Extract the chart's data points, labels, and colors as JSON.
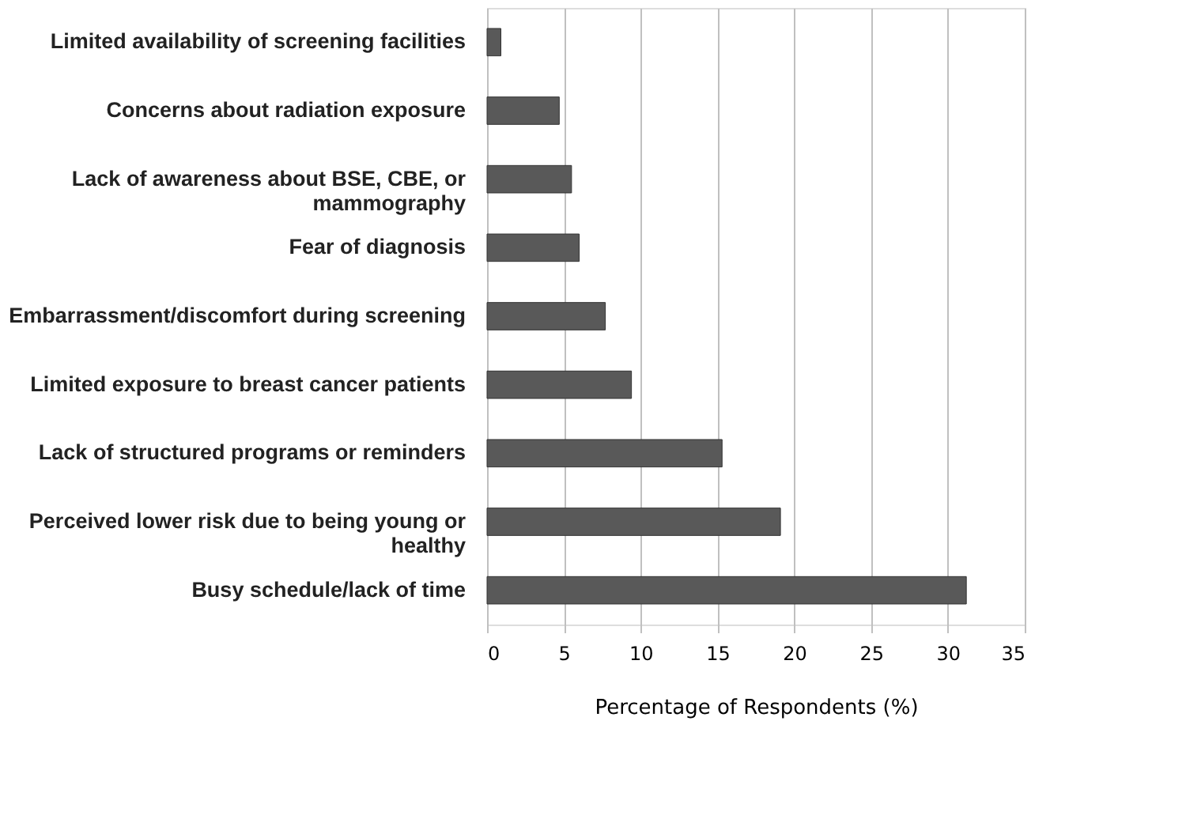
{
  "chart_data": {
    "type": "bar",
    "orientation": "horizontal",
    "categories": [
      "Limited availability of screening facilities",
      "Concerns about radiation exposure",
      "Lack of awareness about BSE, CBE, or mammography",
      "Fear of diagnosis",
      "Embarrassment/discomfort during screening",
      "Limited exposure to breast cancer patients",
      "Lack of structured programs or reminders",
      "Perceived lower risk due to being young or healthy",
      "Busy schedule/lack of time"
    ],
    "values": [
      0.9,
      4.7,
      5.5,
      6.0,
      7.7,
      9.4,
      15.3,
      19.1,
      31.2
    ],
    "color": "#595959",
    "xlabel": "Percentage of Respondents (%)",
    "xlim": [
      0,
      35
    ],
    "xticks": [
      0,
      5,
      10,
      15,
      20,
      25,
      30,
      35
    ],
    "grid": "x"
  }
}
